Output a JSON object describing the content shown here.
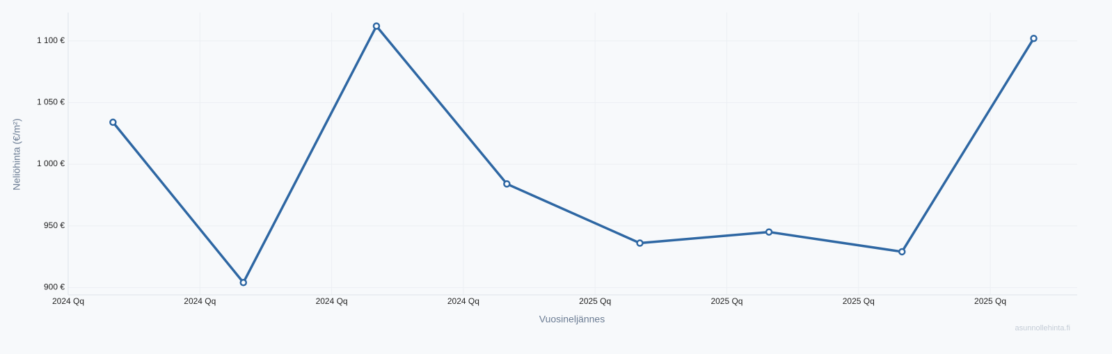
{
  "chart_data": {
    "type": "line",
    "x_label": "Vuosineljännes",
    "y_label": "Neliöhinta (€/m²)",
    "watermark": "asunnollehinta.fi",
    "x": [
      0.34,
      1.33,
      2.34,
      3.33,
      4.34,
      5.32,
      6.33,
      7.33
    ],
    "xlim": [
      0,
      7.66
    ],
    "xticks": [
      {
        "value": 0,
        "label": "2024 Qq"
      },
      {
        "value": 1,
        "label": "2024 Qq"
      },
      {
        "value": 2,
        "label": "2024 Qq"
      },
      {
        "value": 3,
        "label": "2024 Qq"
      },
      {
        "value": 4,
        "label": "2025 Qq"
      },
      {
        "value": 5,
        "label": "2025 Qq"
      },
      {
        "value": 6,
        "label": "2025 Qq"
      },
      {
        "value": 7,
        "label": "2025 Qq"
      }
    ],
    "ylim": [
      894,
      1123
    ],
    "yticks": [
      {
        "value": 900,
        "label": "900 €"
      },
      {
        "value": 950,
        "label": "950 €"
      },
      {
        "value": 1000,
        "label": "1 000 €"
      },
      {
        "value": 1050,
        "label": "1 050 €"
      },
      {
        "value": 1100,
        "label": "1 100 €"
      }
    ],
    "grid": true,
    "series": [
      {
        "color": "#2e67a3",
        "values": [
          1034,
          904,
          1112,
          984,
          936,
          945,
          929,
          1102
        ]
      }
    ]
  }
}
